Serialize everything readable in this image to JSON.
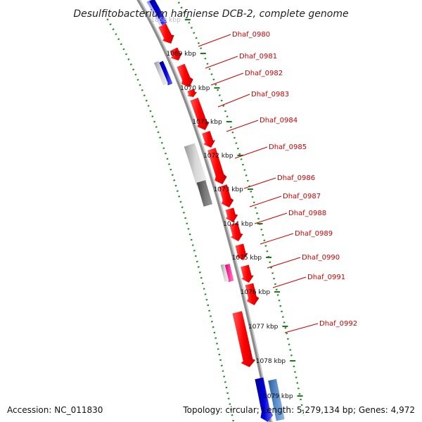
{
  "title": "Desulfitobacterium hafniense DCB-2, complete genome",
  "footer": {
    "accession": "Accession: NC_011830",
    "info": "Topology: circular; Length: 5,279,134 bp; Genes: 4,972"
  },
  "colors": {
    "backbone": "#8c8c8c",
    "ticks": "#228b22",
    "gene_label": "#cc0000",
    "cds_red": "#ff0000",
    "cds_blue": "#0000cc",
    "cds_grey": "#c0c0c0",
    "cds_darkgrey": "#666666",
    "cds_pink": "#ff33aa",
    "cds_steelblue": "#4f86c6"
  },
  "tick_labels": [
    "1068 kbp",
    "1069 kbp",
    "1070 kbp",
    "1071 kbp",
    "1072 kbp",
    "1073 kbp",
    "1074 kbp",
    "1075 kbp",
    "1076 kbp",
    "1077 kbp",
    "1078 kbp",
    "1079 kbp"
  ],
  "genes": [
    {
      "label": "Dhaf_0980"
    },
    {
      "label": "Dhaf_0981"
    },
    {
      "label": "Dhaf_0982"
    },
    {
      "label": "Dhaf_0983"
    },
    {
      "label": "Dhaf_0984"
    },
    {
      "label": "Dhaf_0985"
    },
    {
      "label": "Dhaf_0986"
    },
    {
      "label": "Dhaf_0987"
    },
    {
      "label": "Dhaf_0988"
    },
    {
      "label": "Dhaf_0989"
    },
    {
      "label": "Dhaf_0990"
    },
    {
      "label": "Dhaf_0991"
    },
    {
      "label": "Dhaf_0992"
    }
  ]
}
